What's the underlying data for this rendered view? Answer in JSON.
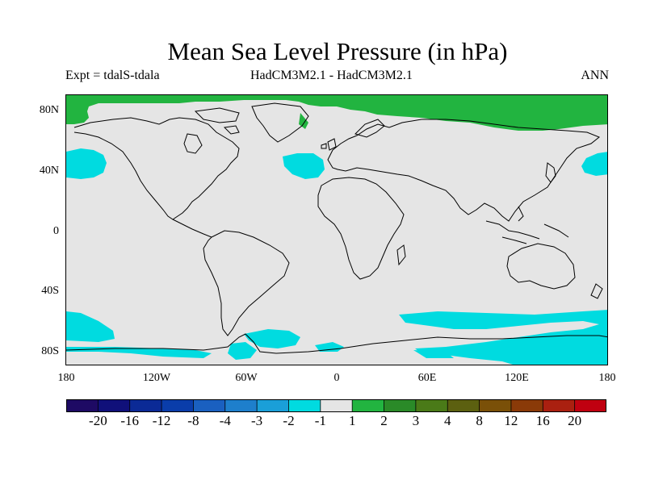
{
  "title": "Mean Sea Level Pressure (in hPa)",
  "subtitle_left": "Expt = tdalS-tdala",
  "subtitle_center": "HadCM3M2.1 - HadCM3M2.1",
  "subtitle_right": "ANN",
  "map": {
    "projection": "cylindrical-equidistant",
    "lon_range": [
      -180,
      180
    ],
    "lat_range": [
      -90,
      90
    ],
    "background_class": "-1 to 1",
    "lat_ticks": [
      {
        "value": 80,
        "label": "80N"
      },
      {
        "value": 40,
        "label": "40N"
      },
      {
        "value": 0,
        "label": "0"
      },
      {
        "value": -40,
        "label": "40S"
      },
      {
        "value": -80,
        "label": "80S"
      }
    ],
    "lon_ticks": [
      {
        "value": -180,
        "label": "180"
      },
      {
        "value": -120,
        "label": "120W"
      },
      {
        "value": -60,
        "label": "60W"
      },
      {
        "value": 0,
        "label": "0"
      },
      {
        "value": 60,
        "label": "60E"
      },
      {
        "value": 120,
        "label": "120E"
      },
      {
        "value": 180,
        "label": "180"
      }
    ],
    "regions": [
      {
        "name": "arctic-positive",
        "class": "1 to 2",
        "color": "#22b440"
      },
      {
        "name": "north-pacific-west-negative",
        "class": "-2 to -1",
        "color": "#00dbe0"
      },
      {
        "name": "north-pacific-east-negative",
        "class": "-2 to -1",
        "color": "#00dbe0"
      },
      {
        "name": "north-atlantic-negative",
        "class": "-2 to -1",
        "color": "#00dbe0"
      },
      {
        "name": "southern-ocean-negative",
        "class": "-2 to -1",
        "color": "#00dbe0"
      }
    ]
  },
  "colorbar": {
    "colors": [
      "#1e0a64",
      "#10107a",
      "#0b2a96",
      "#0a3daa",
      "#1a60c0",
      "#1e7fcc",
      "#1a9fd8",
      "#00dbe0",
      "#e5e5e5",
      "#22b440",
      "#2a8a28",
      "#4a7a18",
      "#5c6010",
      "#7a5008",
      "#8a3a08",
      "#aa2010",
      "#c00010"
    ],
    "labels": [
      "-20",
      "-16",
      "-12",
      "-8",
      "-4",
      "-3",
      "-2",
      "-1",
      "1",
      "2",
      "3",
      "4",
      "8",
      "12",
      "16",
      "20"
    ]
  },
  "colors": {
    "land_ocean_neutral": "#e5e5e5",
    "coastline": "#000000"
  }
}
